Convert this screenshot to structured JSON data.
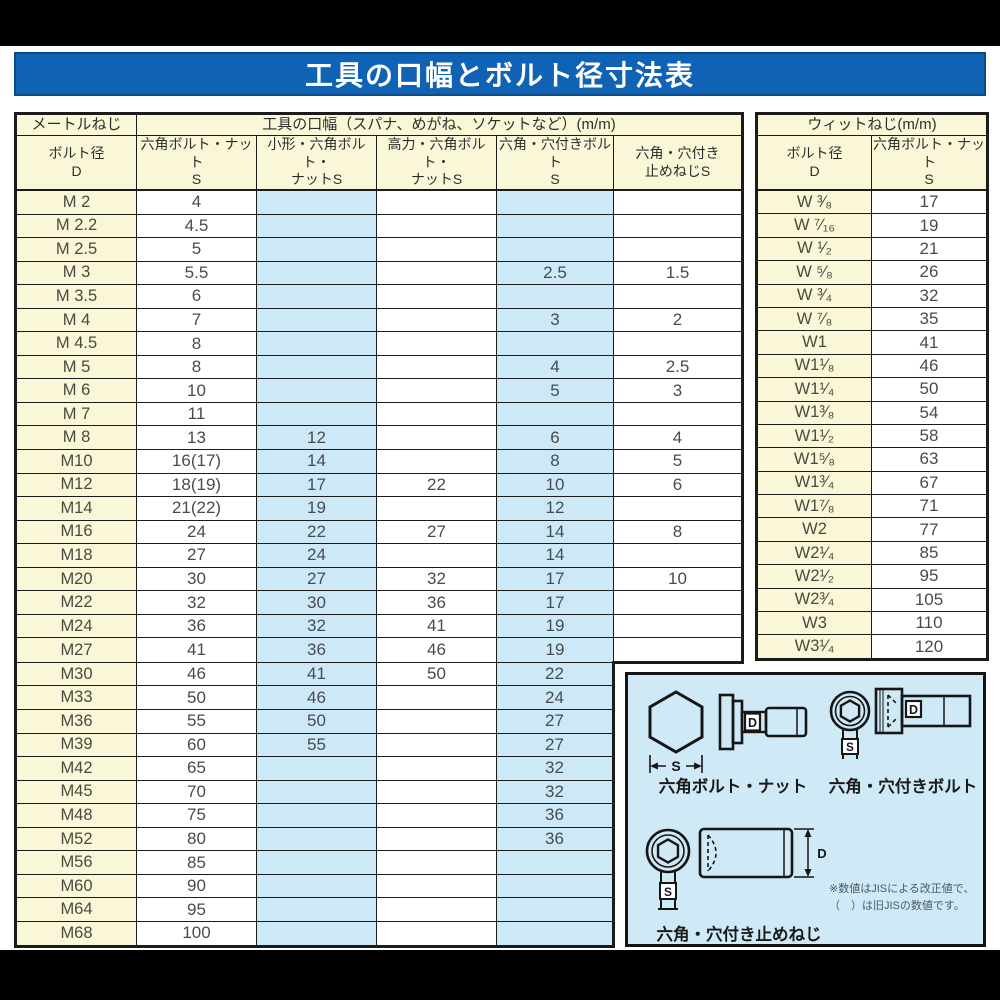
{
  "title": "工具の口幅とボルト径寸法表",
  "colors": {
    "title_bar": "#0f62b4",
    "title_text": "#ffffff",
    "header_fill": "#faf6d8",
    "highlight_fill": "#cde9f8",
    "panel_fill": "#cfe9f7",
    "letterbox": "#000000"
  },
  "metric_table": {
    "group_header_left": "メートルねじ",
    "group_header_right": "工具の口幅（スパナ、めがね、ソケットなど）(m/m)",
    "col_headers": [
      "ボルト径\nD",
      "六角ボルト・ナット\nS",
      "小形・六角ボルト・\nナットS",
      "高力・六角ボルト・\nナットS",
      "六角・穴付きボルト\nS",
      "六角・穴付き\n止めねじS"
    ],
    "rows": [
      [
        "M 2",
        "4",
        "",
        "",
        "",
        ""
      ],
      [
        "M 2.2",
        "4.5",
        "",
        "",
        "",
        ""
      ],
      [
        "M 2.5",
        "5",
        "",
        "",
        "",
        ""
      ],
      [
        "M 3",
        "5.5",
        "",
        "",
        "2.5",
        "1.5"
      ],
      [
        "M 3.5",
        "6",
        "",
        "",
        "",
        ""
      ],
      [
        "M 4",
        "7",
        "",
        "",
        "3",
        "2"
      ],
      [
        "M 4.5",
        "8",
        "",
        "",
        "",
        ""
      ],
      [
        "M 5",
        "8",
        "",
        "",
        "4",
        "2.5"
      ],
      [
        "M 6",
        "10",
        "",
        "",
        "5",
        "3"
      ],
      [
        "M 7",
        "11",
        "",
        "",
        "",
        ""
      ],
      [
        "M 8",
        "13",
        "12",
        "",
        "6",
        "4"
      ],
      [
        "M10",
        "16(17)",
        "14",
        "",
        "8",
        "5"
      ],
      [
        "M12",
        "18(19)",
        "17",
        "22",
        "10",
        "6"
      ],
      [
        "M14",
        "21(22)",
        "19",
        "",
        "12",
        ""
      ],
      [
        "M16",
        "24",
        "22",
        "27",
        "14",
        "8"
      ],
      [
        "M18",
        "27",
        "24",
        "",
        "14",
        ""
      ],
      [
        "M20",
        "30",
        "27",
        "32",
        "17",
        "10"
      ],
      [
        "M22",
        "32",
        "30",
        "36",
        "17",
        ""
      ],
      [
        "M24",
        "36",
        "32",
        "41",
        "19",
        ""
      ],
      [
        "M27",
        "41",
        "36",
        "46",
        "19",
        ""
      ],
      [
        "M30",
        "46",
        "41",
        "50",
        "22"
      ],
      [
        "M33",
        "50",
        "46",
        "",
        "24"
      ],
      [
        "M36",
        "55",
        "50",
        "",
        "27"
      ],
      [
        "M39",
        "60",
        "55",
        "",
        "27"
      ],
      [
        "M42",
        "65",
        "",
        "",
        "32"
      ],
      [
        "M45",
        "70",
        "",
        "",
        "32"
      ],
      [
        "M48",
        "75",
        "",
        "",
        "36"
      ],
      [
        "M52",
        "80",
        "",
        "",
        "36"
      ],
      [
        "M56",
        "85",
        "",
        "",
        ""
      ],
      [
        "M60",
        "90",
        "",
        "",
        ""
      ],
      [
        "M64",
        "95",
        "",
        "",
        ""
      ],
      [
        "M68",
        "100",
        "",
        "",
        ""
      ]
    ]
  },
  "whitworth_table": {
    "group_header": "ウィットねじ(m/m)",
    "col_headers": [
      "ボルト径\nD",
      "六角ボルト・ナット\nS"
    ],
    "rows": [
      [
        "W ³⁄₈",
        "17"
      ],
      [
        "W ⁷⁄₁₆",
        "19"
      ],
      [
        "W ¹⁄₂",
        "21"
      ],
      [
        "W ⁵⁄₈",
        "26"
      ],
      [
        "W ³⁄₄",
        "32"
      ],
      [
        "W ⁷⁄₈",
        "35"
      ],
      [
        "W1",
        "41"
      ],
      [
        "W1¹⁄₈",
        "46"
      ],
      [
        "W1¹⁄₄",
        "50"
      ],
      [
        "W1³⁄₈",
        "54"
      ],
      [
        "W1¹⁄₂",
        "58"
      ],
      [
        "W1⁵⁄₈",
        "63"
      ],
      [
        "W1³⁄₄",
        "67"
      ],
      [
        "W1⁷⁄₈",
        "71"
      ],
      [
        "W2",
        "77"
      ],
      [
        "W2¹⁄₄",
        "85"
      ],
      [
        "W2¹⁄₂",
        "95"
      ],
      [
        "W2³⁄₄",
        "105"
      ],
      [
        "W3",
        "110"
      ],
      [
        "W3¹⁄₄",
        "120"
      ]
    ]
  },
  "diagram": {
    "captions": [
      "六角ボルト・ナット",
      "六角・穴付きボルト",
      "六角・穴付き止めねじ"
    ],
    "labels": {
      "s": "S",
      "d": "D"
    },
    "note_line1": "※数値はJISによる改正値で、",
    "note_line2": "（　）は旧JISの数値です。"
  }
}
